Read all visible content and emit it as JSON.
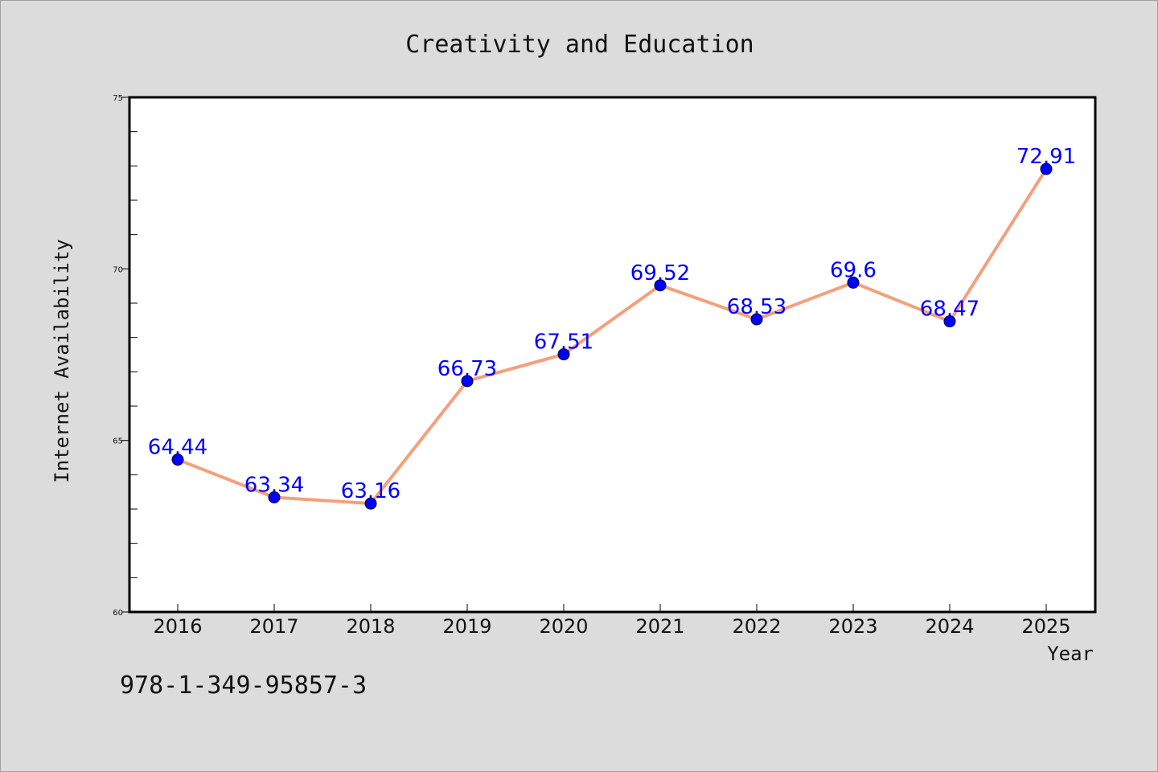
{
  "chart_data": {
    "type": "line",
    "title": "Creativity and Education",
    "xlabel": "Year",
    "ylabel": "Internet Availability",
    "categories": [
      "2016",
      "2017",
      "2018",
      "2019",
      "2020",
      "2021",
      "2022",
      "2023",
      "2024",
      "2025"
    ],
    "series": [
      {
        "values": [
          64.44,
          63.34,
          63.16,
          66.73,
          67.51,
          69.52,
          68.53,
          69.6,
          68.47,
          72.91
        ],
        "labels": [
          "64.44",
          "63.34",
          "63.16",
          "66.73",
          "67.51",
          "69.52",
          "68.53",
          "69.6",
          "68.47",
          "72.91"
        ]
      }
    ],
    "ylim": [
      60,
      75
    ],
    "yticks": [
      "60",
      "65",
      "70",
      "75"
    ],
    "grid": false,
    "colors": {
      "line": "#f4a07c",
      "marker": "#0000ff",
      "label": "#0000ff",
      "background": "#dcdcdc",
      "plot_background": "#ffffff"
    }
  },
  "footer": {
    "code": "978-1-349-95857-3"
  }
}
